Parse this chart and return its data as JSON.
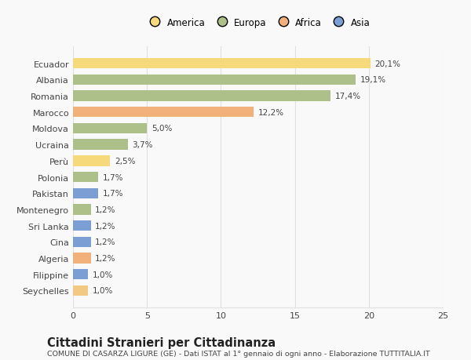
{
  "countries": [
    "Seychelles",
    "Filippine",
    "Algeria",
    "Cina",
    "Sri Lanka",
    "Montenegro",
    "Pakistan",
    "Polonia",
    "Perù",
    "Ucraina",
    "Moldova",
    "Marocco",
    "Romania",
    "Albania",
    "Ecuador"
  ],
  "values": [
    1.0,
    1.0,
    1.2,
    1.2,
    1.2,
    1.2,
    1.7,
    1.7,
    2.5,
    3.7,
    5.0,
    12.2,
    17.4,
    19.1,
    20.1
  ],
  "labels": [
    "1,0%",
    "1,0%",
    "1,2%",
    "1,2%",
    "1,2%",
    "1,2%",
    "1,7%",
    "1,7%",
    "2,5%",
    "3,7%",
    "5,0%",
    "12,2%",
    "17,4%",
    "19,1%",
    "20,1%"
  ],
  "colors": [
    "#f2c882",
    "#7b9fd4",
    "#f2b07a",
    "#7b9fd4",
    "#7b9fd4",
    "#adc08a",
    "#7b9fd4",
    "#adc08a",
    "#f5d97a",
    "#adc08a",
    "#adc08a",
    "#f2b07a",
    "#adc08a",
    "#adc08a",
    "#f5d97a"
  ],
  "legend_labels": [
    "America",
    "Europa",
    "Africa",
    "Asia"
  ],
  "legend_colors": [
    "#f5d97a",
    "#adc08a",
    "#f2b07a",
    "#7b9fd4"
  ],
  "xlim": [
    0,
    25
  ],
  "xticks": [
    0,
    5,
    10,
    15,
    20,
    25
  ],
  "title": "Cittadini Stranieri per Cittadinanza",
  "subtitle": "COMUNE DI CASARZA LIGURE (GE) - Dati ISTAT al 1° gennaio di ogni anno - Elaborazione TUTTITALIA.IT",
  "background_color": "#f9f9f9",
  "bar_height": 0.65,
  "grid_color": "#e0e0e0",
  "text_color": "#444444",
  "label_fontsize": 7.5,
  "ytick_fontsize": 8.0,
  "xtick_fontsize": 8.0,
  "title_fontsize": 10.5,
  "subtitle_fontsize": 6.8
}
